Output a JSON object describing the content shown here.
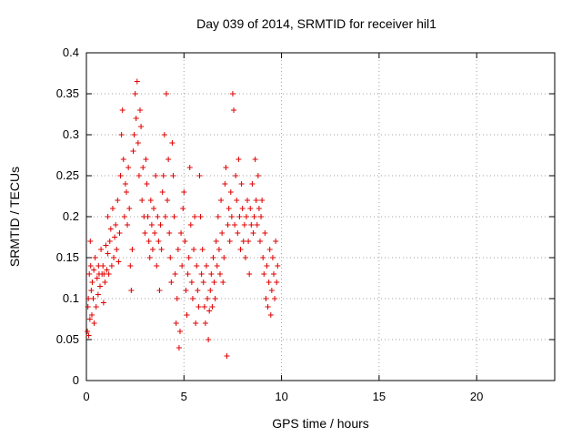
{
  "chart_data": {
    "type": "scatter",
    "title": "Day 039 of 2014, SRMTID for receiver hil1",
    "xlabel": "GPS time / hours",
    "ylabel": "SRMTID / TECUs",
    "xlim": [
      0,
      24
    ],
    "ylim": [
      0,
      0.4
    ],
    "xticks": [
      0,
      5,
      10,
      15,
      20
    ],
    "yticks": [
      0,
      0.05,
      0.1,
      0.15,
      0.2,
      0.25,
      0.3,
      0.35,
      0.4
    ],
    "grid": true,
    "marker": "+",
    "color": "#e00000",
    "series": [
      {
        "points": [
          [
            0.05,
            0.06
          ],
          [
            0.08,
            0.09
          ],
          [
            0.1,
            0.1
          ],
          [
            0.12,
            0.055
          ],
          [
            0.15,
            0.13
          ],
          [
            0.18,
            0.075
          ],
          [
            0.2,
            0.17
          ],
          [
            0.22,
            0.14
          ],
          [
            0.25,
            0.11
          ],
          [
            0.28,
            0.08
          ],
          [
            0.3,
            0.12
          ],
          [
            0.35,
            0.1
          ],
          [
            0.38,
            0.135
          ],
          [
            0.4,
            0.07
          ],
          [
            0.45,
            0.15
          ],
          [
            0.5,
            0.09
          ],
          [
            0.55,
            0.125
          ],
          [
            0.6,
            0.105
          ],
          [
            0.62,
            0.14
          ],
          [
            0.65,
            0.13
          ],
          [
            0.7,
            0.115
          ],
          [
            0.75,
            0.16
          ],
          [
            0.8,
            0.13
          ],
          [
            0.85,
            0.14
          ],
          [
            0.88,
            0.095
          ],
          [
            0.9,
            0.13
          ],
          [
            0.95,
            0.12
          ],
          [
            1.0,
            0.165
          ],
          [
            1.05,
            0.135
          ],
          [
            1.1,
            0.155
          ],
          [
            1.1,
            0.2
          ],
          [
            1.15,
            0.13
          ],
          [
            1.2,
            0.17
          ],
          [
            1.25,
            0.185
          ],
          [
            1.3,
            0.14
          ],
          [
            1.35,
            0.21
          ],
          [
            1.4,
            0.15
          ],
          [
            1.45,
            0.175
          ],
          [
            1.5,
            0.19
          ],
          [
            1.55,
            0.16
          ],
          [
            1.6,
            0.22
          ],
          [
            1.65,
            0.145
          ],
          [
            1.7,
            0.18
          ],
          [
            1.75,
            0.25
          ],
          [
            1.8,
            0.3
          ],
          [
            1.85,
            0.33
          ],
          [
            1.9,
            0.27
          ],
          [
            1.95,
            0.2
          ],
          [
            2.0,
            0.24
          ],
          [
            2.05,
            0.23
          ],
          [
            2.1,
            0.19
          ],
          [
            2.15,
            0.26
          ],
          [
            2.2,
            0.21
          ],
          [
            2.25,
            0.14
          ],
          [
            2.3,
            0.11
          ],
          [
            2.35,
            0.16
          ],
          [
            2.4,
            0.28
          ],
          [
            2.45,
            0.3
          ],
          [
            2.5,
            0.35
          ],
          [
            2.55,
            0.32
          ],
          [
            2.6,
            0.365
          ],
          [
            2.65,
            0.29
          ],
          [
            2.7,
            0.25
          ],
          [
            2.75,
            0.33
          ],
          [
            2.8,
            0.31
          ],
          [
            2.85,
            0.22
          ],
          [
            2.9,
            0.26
          ],
          [
            2.95,
            0.2
          ],
          [
            3.0,
            0.18
          ],
          [
            3.05,
            0.27
          ],
          [
            3.1,
            0.24
          ],
          [
            3.15,
            0.2
          ],
          [
            3.2,
            0.17
          ],
          [
            3.25,
            0.15
          ],
          [
            3.3,
            0.22
          ],
          [
            3.35,
            0.19
          ],
          [
            3.4,
            0.16
          ],
          [
            3.45,
            0.21
          ],
          [
            3.5,
            0.18
          ],
          [
            3.55,
            0.25
          ],
          [
            3.6,
            0.14
          ],
          [
            3.65,
            0.2
          ],
          [
            3.7,
            0.17
          ],
          [
            3.75,
            0.11
          ],
          [
            3.8,
            0.19
          ],
          [
            3.85,
            0.16
          ],
          [
            3.9,
            0.23
          ],
          [
            3.95,
            0.25
          ],
          [
            4.0,
            0.3
          ],
          [
            4.05,
            0.2
          ],
          [
            4.1,
            0.35
          ],
          [
            4.15,
            0.22
          ],
          [
            4.2,
            0.27
          ],
          [
            4.25,
            0.18
          ],
          [
            4.3,
            0.15
          ],
          [
            4.35,
            0.12
          ],
          [
            4.4,
            0.29
          ],
          [
            4.45,
            0.25
          ],
          [
            4.5,
            0.2
          ],
          [
            4.55,
            0.13
          ],
          [
            4.6,
            0.07
          ],
          [
            4.65,
            0.1
          ],
          [
            4.7,
            0.16
          ],
          [
            4.75,
            0.04
          ],
          [
            4.8,
            0.06
          ],
          [
            4.85,
            0.18
          ],
          [
            4.9,
            0.14
          ],
          [
            4.95,
            0.21
          ],
          [
            5.0,
            0.23
          ],
          [
            5.05,
            0.17
          ],
          [
            5.1,
            0.11
          ],
          [
            5.15,
            0.08
          ],
          [
            5.2,
            0.13
          ],
          [
            5.25,
            0.15
          ],
          [
            5.3,
            0.26
          ],
          [
            5.35,
            0.19
          ],
          [
            5.4,
            0.12
          ],
          [
            5.45,
            0.1
          ],
          [
            5.5,
            0.16
          ],
          [
            5.55,
            0.2
          ],
          [
            5.6,
            0.07
          ],
          [
            5.65,
            0.14
          ],
          [
            5.7,
            0.11
          ],
          [
            5.75,
            0.09
          ],
          [
            5.8,
            0.25
          ],
          [
            5.85,
            0.2
          ],
          [
            5.9,
            0.13
          ],
          [
            5.95,
            0.16
          ],
          [
            6.0,
            0.12
          ],
          [
            6.05,
            0.09
          ],
          [
            6.1,
            0.07
          ],
          [
            6.15,
            0.14
          ],
          [
            6.2,
            0.1
          ],
          [
            6.25,
            0.05
          ],
          [
            6.3,
            0.085
          ],
          [
            6.35,
            0.11
          ],
          [
            6.4,
            0.13
          ],
          [
            6.45,
            0.09
          ],
          [
            6.5,
            0.15
          ],
          [
            6.55,
            0.12
          ],
          [
            6.6,
            0.1
          ],
          [
            6.65,
            0.17
          ],
          [
            6.7,
            0.14
          ],
          [
            6.75,
            0.2
          ],
          [
            6.8,
            0.16
          ],
          [
            6.85,
            0.13
          ],
          [
            6.9,
            0.22
          ],
          [
            6.95,
            0.18
          ],
          [
            7.0,
            0.12
          ],
          [
            7.05,
            0.15
          ],
          [
            7.1,
            0.24
          ],
          [
            7.15,
            0.26
          ],
          [
            7.2,
            0.03
          ],
          [
            7.25,
            0.19
          ],
          [
            7.3,
            0.21
          ],
          [
            7.35,
            0.17
          ],
          [
            7.4,
            0.23
          ],
          [
            7.45,
            0.2
          ],
          [
            7.5,
            0.35
          ],
          [
            7.55,
            0.33
          ],
          [
            7.6,
            0.19
          ],
          [
            7.65,
            0.25
          ],
          [
            7.7,
            0.22
          ],
          [
            7.75,
            0.18
          ],
          [
            7.8,
            0.27
          ],
          [
            7.85,
            0.2
          ],
          [
            7.9,
            0.16
          ],
          [
            7.95,
            0.24
          ],
          [
            8.0,
            0.21
          ],
          [
            8.05,
            0.17
          ],
          [
            8.1,
            0.19
          ],
          [
            8.15,
            0.15
          ],
          [
            8.2,
            0.2
          ],
          [
            8.25,
            0.22
          ],
          [
            8.3,
            0.17
          ],
          [
            8.35,
            0.13
          ],
          [
            8.4,
            0.21
          ],
          [
            8.45,
            0.19
          ],
          [
            8.5,
            0.24
          ],
          [
            8.55,
            0.18
          ],
          [
            8.6,
            0.2
          ],
          [
            8.65,
            0.27
          ],
          [
            8.7,
            0.22
          ],
          [
            8.75,
            0.19
          ],
          [
            8.8,
            0.25
          ],
          [
            8.85,
            0.21
          ],
          [
            8.9,
            0.17
          ],
          [
            8.95,
            0.2
          ],
          [
            9.0,
            0.22
          ],
          [
            9.05,
            0.15
          ],
          [
            9.1,
            0.13
          ],
          [
            9.15,
            0.18
          ],
          [
            9.2,
            0.1
          ],
          [
            9.25,
            0.14
          ],
          [
            9.3,
            0.09
          ],
          [
            9.35,
            0.12
          ],
          [
            9.4,
            0.16
          ],
          [
            9.45,
            0.08
          ],
          [
            9.5,
            0.11
          ],
          [
            9.55,
            0.15
          ],
          [
            9.6,
            0.13
          ],
          [
            9.65,
            0.1
          ],
          [
            9.7,
            0.17
          ],
          [
            9.75,
            0.12
          ],
          [
            9.8,
            0.14
          ]
        ]
      }
    ]
  }
}
